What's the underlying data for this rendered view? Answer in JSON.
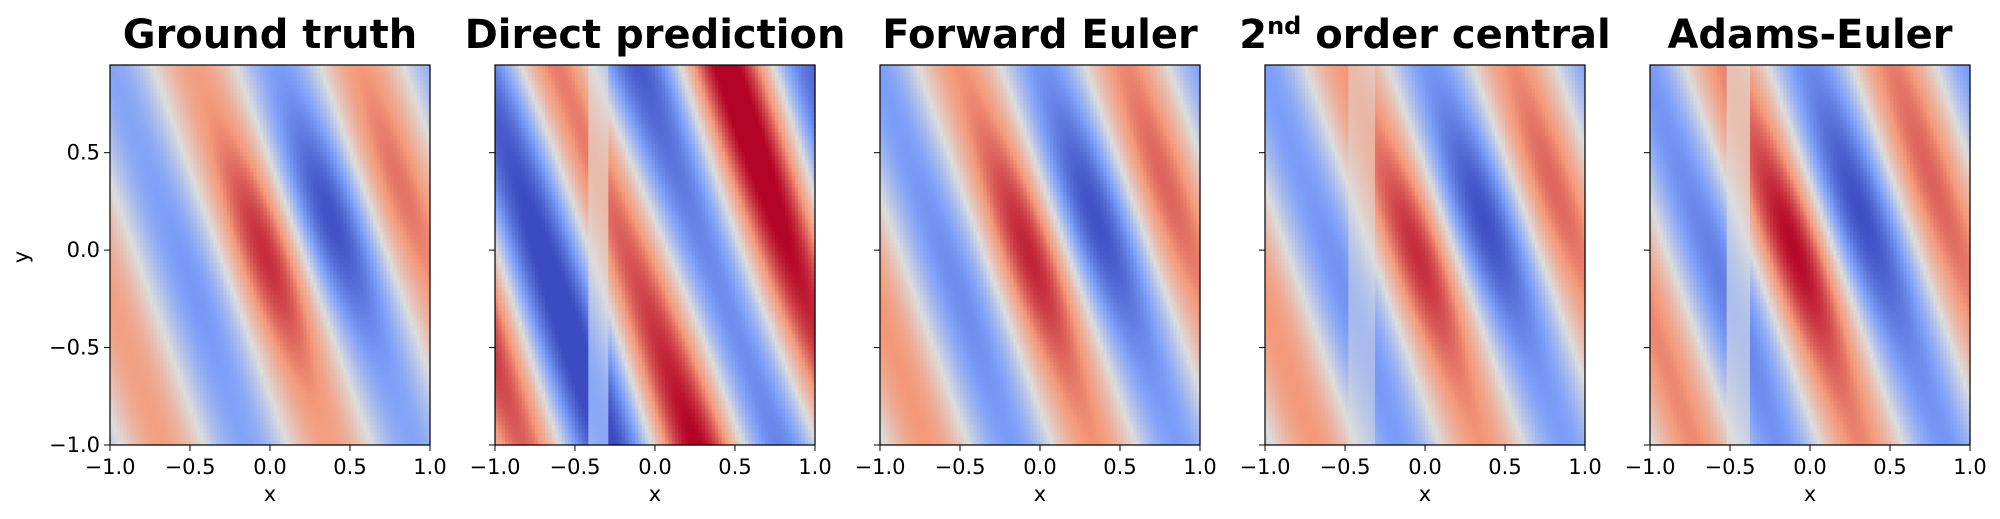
{
  "chart_data": [
    {
      "type": "heatmap",
      "title": "Ground truth",
      "xlabel": "x",
      "ylabel": "y",
      "xlim": [
        -1.0,
        1.0
      ],
      "ylim": [
        -1.0,
        0.95
      ],
      "xticks": [
        "−1.0",
        "−0.5",
        "0.0",
        "0.5",
        "1.0"
      ],
      "yticks": [
        "−1.0",
        "−0.5",
        "0.0",
        "0.5"
      ],
      "colormap": "coolwarm"
    },
    {
      "type": "heatmap",
      "title": "Direct prediction",
      "xlabel": "x",
      "ylabel": "",
      "xlim": [
        -1.0,
        1.0
      ],
      "ylim": [
        -1.0,
        0.95
      ],
      "xticks": [
        "−1.0",
        "−0.5",
        "0.0",
        "0.5",
        "1.0"
      ],
      "yticks": [],
      "colormap": "coolwarm"
    },
    {
      "type": "heatmap",
      "title": "Forward Euler",
      "xlabel": "x",
      "ylabel": "",
      "xlim": [
        -1.0,
        1.0
      ],
      "ylim": [
        -1.0,
        0.95
      ],
      "xticks": [
        "−1.0",
        "−0.5",
        "0.0",
        "0.5",
        "1.0"
      ],
      "yticks": [],
      "colormap": "coolwarm"
    },
    {
      "type": "heatmap",
      "title": "2",
      "title_superscript": "nd",
      "title_suffix": " order central",
      "xlabel": "x",
      "ylabel": "",
      "xlim": [
        -1.0,
        1.0
      ],
      "ylim": [
        -1.0,
        0.95
      ],
      "xticks": [
        "−1.0",
        "−0.5",
        "0.0",
        "0.5",
        "1.0"
      ],
      "yticks": [],
      "colormap": "coolwarm"
    },
    {
      "type": "heatmap",
      "title": "Adams-Euler",
      "xlabel": "x",
      "ylabel": "",
      "xlim": [
        -1.0,
        1.0
      ],
      "ylim": [
        -1.0,
        0.95
      ],
      "xticks": [
        "−1.0",
        "−0.5",
        "0.0",
        "0.5",
        "1.0"
      ],
      "yticks": [],
      "colormap": "coolwarm"
    }
  ]
}
